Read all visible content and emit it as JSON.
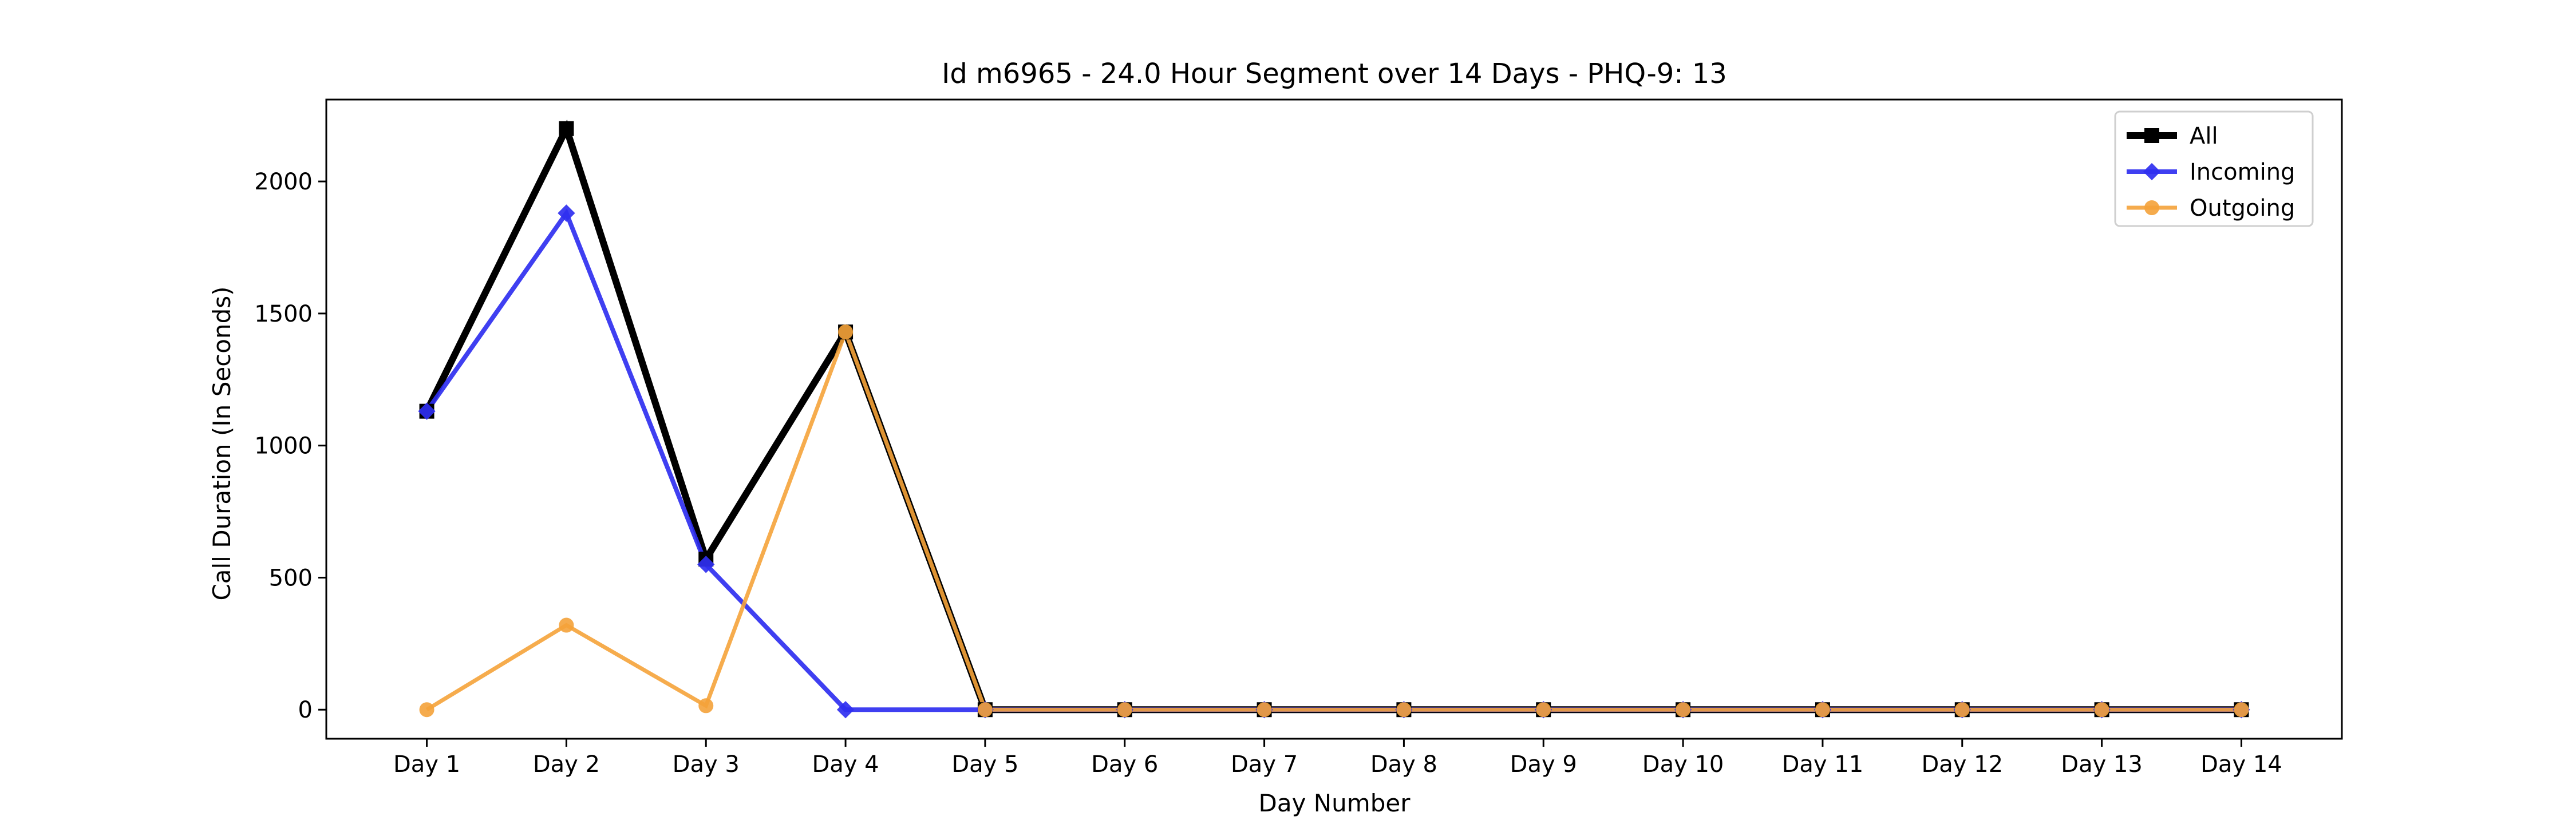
{
  "chart_data": {
    "type": "line",
    "title": "Id m6965 - 24.0 Hour Segment over 14 Days - PHQ-9: 13",
    "xlabel": "Day Number",
    "ylabel": "Call Duration (In Seconds)",
    "categories": [
      "Day 1",
      "Day 2",
      "Day 3",
      "Day 4",
      "Day 5",
      "Day 6",
      "Day 7",
      "Day 8",
      "Day 9",
      "Day 10",
      "Day 11",
      "Day 12",
      "Day 13",
      "Day 14"
    ],
    "ylim": [
      -110,
      2310
    ],
    "yticks": [
      0,
      500,
      1000,
      1500,
      2000
    ],
    "grid": false,
    "legend_position": "top-right",
    "series": [
      {
        "name": "All",
        "color": "#000000",
        "marker": "square",
        "values": [
          1130,
          2200,
          570,
          1430,
          0,
          0,
          0,
          0,
          0,
          0,
          0,
          0,
          0,
          0
        ]
      },
      {
        "name": "Incoming",
        "color": "#2F2FF0",
        "marker": "diamond",
        "values": [
          1130,
          1880,
          550,
          0,
          0,
          0,
          0,
          0,
          0,
          0,
          0,
          0,
          0,
          0
        ]
      },
      {
        "name": "Outgoing",
        "color": "#F5A33A",
        "marker": "circle",
        "values": [
          0,
          320,
          15,
          1430,
          0,
          0,
          0,
          0,
          0,
          0,
          0,
          0,
          0,
          0
        ]
      }
    ]
  }
}
